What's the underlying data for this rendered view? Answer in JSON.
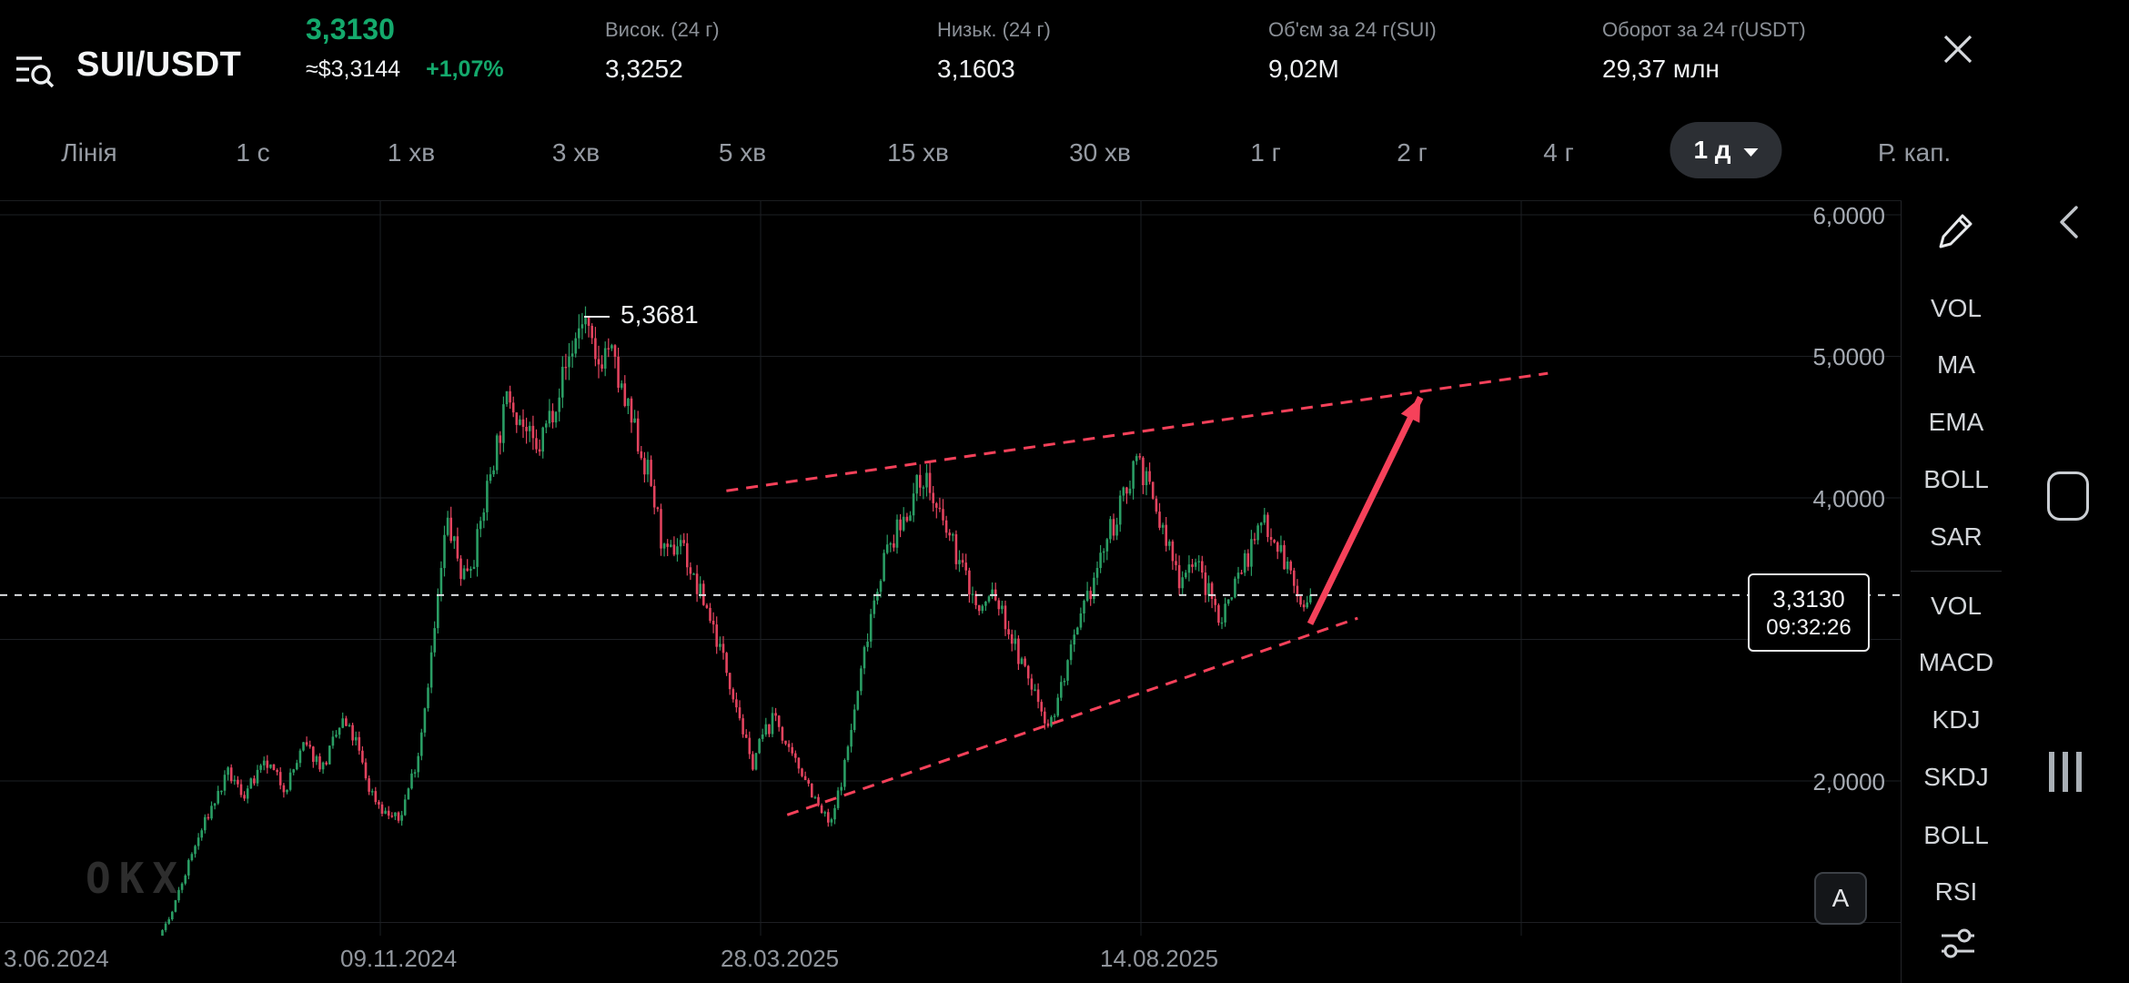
{
  "header": {
    "pair": "SUI/USDT",
    "price": "3,3130",
    "approx": "≈$3,3144",
    "change": "+1,07%",
    "stats": [
      {
        "label": "Висок. (24 г)",
        "value": "3,3252"
      },
      {
        "label": "Низьк. (24 г)",
        "value": "3,1603"
      },
      {
        "label": "Об'єм за 24 г(SUI)",
        "value": "9,02M"
      },
      {
        "label": "Оборот за 24 г(USDT)",
        "value": "29,37 млн"
      }
    ]
  },
  "timeframes": {
    "items": [
      "Лінія",
      "1 с",
      "1 хв",
      "3 хв",
      "5 хв",
      "15 хв",
      "30 хв",
      "1 г",
      "2 г",
      "4 г",
      "1 д",
      "Р. кап."
    ],
    "selected": "1 д"
  },
  "chart_data": {
    "type": "candlestick",
    "pair": "SUI/USDT",
    "timeframe": "1 д",
    "x_labels": [
      "3.06.2024",
      "09.11.2024",
      "28.03.2025",
      "14.08.2025"
    ],
    "y_ticks": [
      "6,0000",
      "5,0000",
      "4,0000",
      "2,0000"
    ],
    "y_tick_values": [
      6,
      5,
      4,
      2
    ],
    "high_annotation": "5,3681",
    "high_value": 5.3681,
    "last_price": 3.313,
    "last_price_label": "3,3130",
    "last_time_label": "09:32:26",
    "candles_end_frac": 0.69,
    "price_path_anchors": [
      [
        0.0,
        0.6
      ],
      [
        0.045,
        0.55
      ],
      [
        0.068,
        0.63
      ],
      [
        0.08,
        0.8
      ],
      [
        0.09,
        1.05
      ],
      [
        0.1,
        1.45
      ],
      [
        0.11,
        1.78
      ],
      [
        0.12,
        2.05
      ],
      [
        0.128,
        1.9
      ],
      [
        0.14,
        2.12
      ],
      [
        0.15,
        1.95
      ],
      [
        0.16,
        2.25
      ],
      [
        0.17,
        2.1
      ],
      [
        0.18,
        2.42
      ],
      [
        0.187,
        2.28
      ],
      [
        0.194,
        1.95
      ],
      [
        0.202,
        1.78
      ],
      [
        0.21,
        1.72
      ],
      [
        0.22,
        2.2
      ],
      [
        0.228,
        3.0
      ],
      [
        0.235,
        3.85
      ],
      [
        0.243,
        3.45
      ],
      [
        0.25,
        3.62
      ],
      [
        0.258,
        4.2
      ],
      [
        0.268,
        4.75
      ],
      [
        0.275,
        4.52
      ],
      [
        0.282,
        4.3
      ],
      [
        0.29,
        4.62
      ],
      [
        0.3,
        5.02
      ],
      [
        0.307,
        5.3
      ],
      [
        0.313,
        4.92
      ],
      [
        0.32,
        5.08
      ],
      [
        0.328,
        4.68
      ],
      [
        0.335,
        4.42
      ],
      [
        0.342,
        4.12
      ],
      [
        0.35,
        3.55
      ],
      [
        0.358,
        3.72
      ],
      [
        0.365,
        3.4
      ],
      [
        0.372,
        3.22
      ],
      [
        0.38,
        2.88
      ],
      [
        0.388,
        2.52
      ],
      [
        0.395,
        2.1
      ],
      [
        0.401,
        2.32
      ],
      [
        0.408,
        2.46
      ],
      [
        0.415,
        2.18
      ],
      [
        0.423,
        2.05
      ],
      [
        0.43,
        1.82
      ],
      [
        0.437,
        1.68
      ],
      [
        0.444,
        2.1
      ],
      [
        0.451,
        2.62
      ],
      [
        0.458,
        3.2
      ],
      [
        0.465,
        3.58
      ],
      [
        0.472,
        3.76
      ],
      [
        0.48,
        4.0
      ],
      [
        0.486,
        4.18
      ],
      [
        0.493,
        3.88
      ],
      [
        0.5,
        3.7
      ],
      [
        0.508,
        3.44
      ],
      [
        0.515,
        3.18
      ],
      [
        0.522,
        3.34
      ],
      [
        0.53,
        3.08
      ],
      [
        0.538,
        2.8
      ],
      [
        0.545,
        2.6
      ],
      [
        0.552,
        2.38
      ],
      [
        0.56,
        2.76
      ],
      [
        0.568,
        3.1
      ],
      [
        0.575,
        3.42
      ],
      [
        0.582,
        3.7
      ],
      [
        0.59,
        3.95
      ],
      [
        0.598,
        4.33
      ],
      [
        0.605,
        4.02
      ],
      [
        0.612,
        3.74
      ],
      [
        0.62,
        3.44
      ],
      [
        0.628,
        3.58
      ],
      [
        0.635,
        3.34
      ],
      [
        0.642,
        3.14
      ],
      [
        0.65,
        3.44
      ],
      [
        0.658,
        3.64
      ],
      [
        0.665,
        3.86
      ],
      [
        0.672,
        3.68
      ],
      [
        0.68,
        3.4
      ],
      [
        0.686,
        3.18
      ],
      [
        0.69,
        3.31
      ]
    ],
    "trendlines": [
      {
        "name": "upper-resistance",
        "from": [
          0.382,
          4.05
        ],
        "to": [
          0.814,
          4.88
        ]
      },
      {
        "name": "lower-support",
        "from": [
          0.414,
          1.76
        ],
        "to": [
          0.714,
          3.15
        ]
      }
    ],
    "arrow": {
      "from": [
        0.689,
        3.11
      ],
      "to": [
        0.747,
        4.71
      ]
    },
    "colors": {
      "up": "#2a9d64",
      "down": "#e2435e",
      "trend": "#f6415a",
      "last_line": "#e8eaee"
    }
  },
  "indicators": {
    "main": [
      "VOL",
      "MA",
      "EMA",
      "BOLL",
      "SAR"
    ],
    "sub": [
      "VOL",
      "MACD",
      "KDJ",
      "SKDJ",
      "BOLL",
      "RSI"
    ]
  },
  "misc": {
    "a_button": "A",
    "watermark": "OKX"
  }
}
